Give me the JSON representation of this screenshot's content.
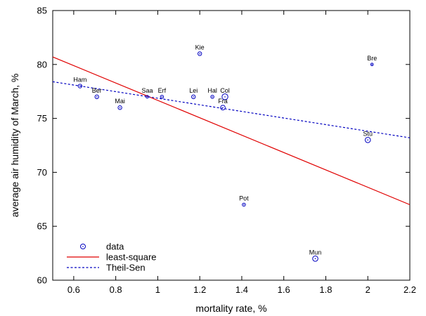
{
  "chart_data": {
    "type": "scatter",
    "xlabel": "mortality rate, %",
    "ylabel": "average air humidity of March, %",
    "xlim": [
      0.5,
      2.2
    ],
    "ylim": [
      60,
      85
    ],
    "xticks": [
      0.6,
      0.8,
      1,
      1.2,
      1.4,
      1.6,
      1.8,
      2,
      2.2
    ],
    "yticks": [
      60,
      65,
      70,
      75,
      80,
      85
    ],
    "grid": false,
    "legend": {
      "position": "bottom-left",
      "entries": [
        "data",
        "least-square",
        "Theil-Sen"
      ]
    },
    "colors": {
      "data": "#0000c0",
      "least_square": "#e00000",
      "theil_sen": "#0000c0"
    },
    "points": [
      {
        "label": "Ham",
        "x": 0.63,
        "y": 78,
        "weight": 1
      },
      {
        "label": "Ber",
        "x": 0.71,
        "y": 77,
        "weight": 1
      },
      {
        "label": "Mai",
        "x": 0.82,
        "y": 76,
        "weight": 1
      },
      {
        "label": "Saa",
        "x": 0.95,
        "y": 77,
        "weight": 0.3
      },
      {
        "label": "Erf",
        "x": 1.02,
        "y": 77,
        "weight": 0.5
      },
      {
        "label": "Lei",
        "x": 1.17,
        "y": 77,
        "weight": 1
      },
      {
        "label": "Kie",
        "x": 1.2,
        "y": 81,
        "weight": 1
      },
      {
        "label": "Hal",
        "x": 1.26,
        "y": 77,
        "weight": 0.5
      },
      {
        "label": "Col",
        "x": 1.32,
        "y": 77,
        "weight": 4
      },
      {
        "label": "Fra",
        "x": 1.31,
        "y": 76,
        "weight": 2
      },
      {
        "label": "Pot",
        "x": 1.41,
        "y": 67,
        "weight": 0.5
      },
      {
        "label": "Mun",
        "x": 1.75,
        "y": 62,
        "weight": 3
      },
      {
        "label": "Stu",
        "x": 2.0,
        "y": 73,
        "weight": 3
      },
      {
        "label": "Bre",
        "x": 2.02,
        "y": 80,
        "weight": 0.2
      }
    ],
    "series": [
      {
        "name": "least-square",
        "x": [
          0.5,
          2.2
        ],
        "y": [
          80.7,
          67.0
        ]
      },
      {
        "name": "Theil-Sen",
        "x": [
          0.5,
          2.2
        ],
        "y": [
          78.4,
          73.2
        ]
      }
    ]
  }
}
